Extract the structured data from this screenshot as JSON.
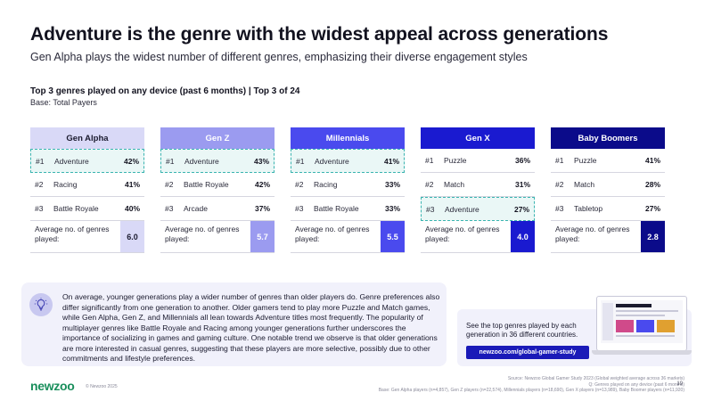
{
  "header": {
    "title": "Adventure is the genre with the widest appeal across generations",
    "subtitle": "Gen Alpha plays the widest number of different genres, emphasizing their diverse engagement styles"
  },
  "section": {
    "title": "Top 3 genres played on any device (past 6 months) | Top 3 of 24",
    "base": "Base: Total Payers"
  },
  "avg_label": "Average no. of genres played:",
  "generations": [
    {
      "name": "Gen Alpha",
      "header_bg": "#d9d9f7",
      "header_color": "#1a1a2e",
      "avg_bg": "#d9d9f7",
      "avg_color": "#1a1a2e",
      "rows": [
        {
          "rank": "#1",
          "genre": "Adventure",
          "value": "42%",
          "highlight": true
        },
        {
          "rank": "#2",
          "genre": "Racing",
          "value": "41%",
          "highlight": false
        },
        {
          "rank": "#3",
          "genre": "Battle Royale",
          "value": "40%",
          "highlight": false
        }
      ],
      "avg": "6.0"
    },
    {
      "name": "Gen Z",
      "header_bg": "#9b9bf0",
      "header_color": "#ffffff",
      "avg_bg": "#9b9bf0",
      "avg_color": "#ffffff",
      "rows": [
        {
          "rank": "#1",
          "genre": "Adventure",
          "value": "43%",
          "highlight": true
        },
        {
          "rank": "#2",
          "genre": "Battle Royale",
          "value": "42%",
          "highlight": false
        },
        {
          "rank": "#3",
          "genre": "Arcade",
          "value": "37%",
          "highlight": false
        }
      ],
      "avg": "5.7"
    },
    {
      "name": "Millennials",
      "header_bg": "#4a4aee",
      "header_color": "#ffffff",
      "avg_bg": "#4a4aee",
      "avg_color": "#ffffff",
      "rows": [
        {
          "rank": "#1",
          "genre": "Adventure",
          "value": "41%",
          "highlight": true
        },
        {
          "rank": "#2",
          "genre": "Racing",
          "value": "33%",
          "highlight": false
        },
        {
          "rank": "#3",
          "genre": "Battle Royale",
          "value": "33%",
          "highlight": false
        }
      ],
      "avg": "5.5"
    },
    {
      "name": "Gen X",
      "header_bg": "#1a1ad0",
      "header_color": "#ffffff",
      "avg_bg": "#1a1ad0",
      "avg_color": "#ffffff",
      "rows": [
        {
          "rank": "#1",
          "genre": "Puzzle",
          "value": "36%",
          "highlight": false
        },
        {
          "rank": "#2",
          "genre": "Match",
          "value": "31%",
          "highlight": false
        },
        {
          "rank": "#3",
          "genre": "Adventure",
          "value": "27%",
          "highlight": true
        }
      ],
      "avg": "4.0"
    },
    {
      "name": "Baby Boomers",
      "header_bg": "#0b0b8a",
      "header_color": "#ffffff",
      "avg_bg": "#0b0b8a",
      "avg_color": "#ffffff",
      "rows": [
        {
          "rank": "#1",
          "genre": "Puzzle",
          "value": "41%",
          "highlight": false
        },
        {
          "rank": "#2",
          "genre": "Match",
          "value": "28%",
          "highlight": false
        },
        {
          "rank": "#3",
          "genre": "Tabletop",
          "value": "27%",
          "highlight": false
        }
      ],
      "avg": "2.8"
    }
  ],
  "insight": {
    "icon": "lightbulb-icon",
    "text": "On average, younger generations play a wider number of genres than older players do. Genre preferences also differ significantly from one generation to another. Older gamers tend to play more Puzzle and Match games, while Gen Alpha, Gen Z, and Millennials all lean towards Adventure titles most frequently. The popularity of multiplayer genres like Battle Royale and Racing among younger generations further underscores the importance of socializing in games and gaming culture. One notable trend we observe is that older generations are more interested in casual genres, suggesting that these players are more selective, possibly due to other commitments and lifestyle preferences."
  },
  "promo": {
    "text": "See the top genres played by each generation in 36 different countries.",
    "button": "newzoo.com/global-gamer-study"
  },
  "footer": {
    "logo": "newzoo",
    "copyright": "© Newzoo 2025",
    "source_line1": "Source: Newzoo Global Gamer Study 2023 (Global weighted average across 36 markets)",
    "source_line2": "Q: Genres played on any device (past 6 months)",
    "source_line3": "Base: Gen Alpha players (n=4,857), Gen Z players (n=22,574), Millennials players (n=18,690), Gen X players (n=13,989), Baby Boomer players (n=11,920)",
    "page": "19"
  },
  "colors": {
    "highlight_border": "#3ab4b0",
    "highlight_bg": "#eaf7f6",
    "logo": "#1a8f5c",
    "button": "#1a1ab8"
  }
}
